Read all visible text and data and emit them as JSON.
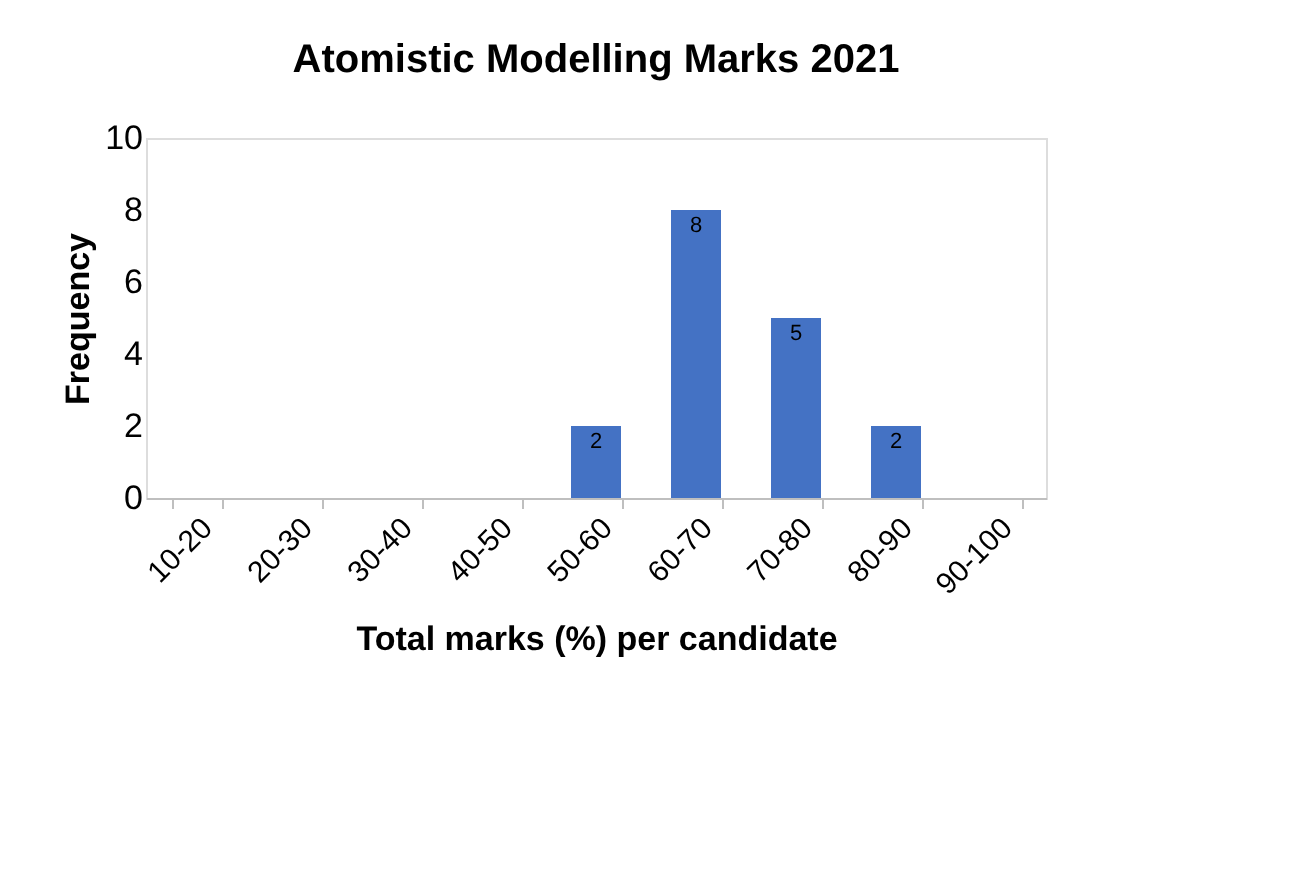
{
  "chart_data": {
    "type": "bar",
    "title": "Atomistic Modelling Marks 2021",
    "xlabel": "Total marks (%) per candidate",
    "ylabel": "Frequency",
    "categories": [
      "10-20",
      "20-30",
      "30-40",
      "40-50",
      "50-60",
      "60-70",
      "70-80",
      "80-90",
      "90-100"
    ],
    "values": [
      0,
      0,
      0,
      0,
      2,
      8,
      5,
      2,
      0
    ],
    "value_labels": [
      null,
      null,
      null,
      null,
      "2",
      "8",
      "5",
      "2",
      null
    ],
    "color": "#4472c4",
    "ylim": [
      0,
      10
    ],
    "yticks": [
      0,
      2,
      4,
      6,
      8,
      10
    ],
    "grid": false
  }
}
